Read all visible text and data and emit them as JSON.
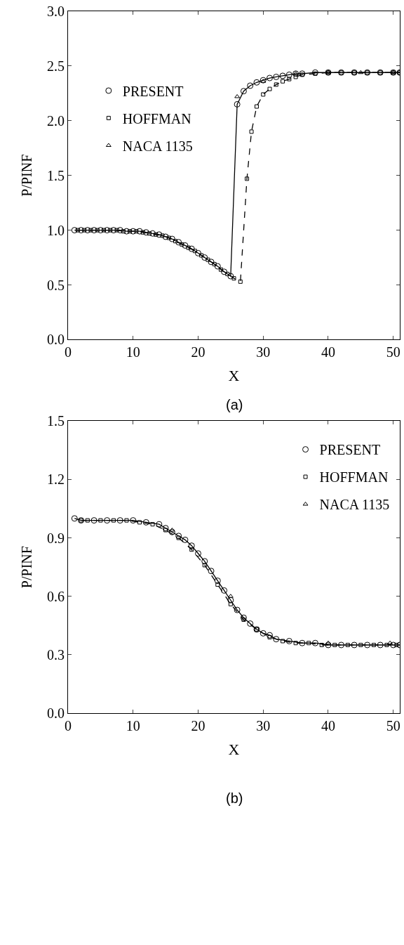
{
  "chart_data": [
    {
      "type": "line",
      "xlabel": "X",
      "ylabel": "P/PINF",
      "annotations": [
        "(a)"
      ],
      "xlim": [
        0,
        51
      ],
      "ylim": [
        0,
        3.0
      ],
      "xticks": [
        0,
        10,
        20,
        30,
        40,
        50
      ],
      "yticks": [
        {
          "value": 0,
          "label": "0.0"
        },
        {
          "value": 0.5,
          "label": "0.5"
        },
        {
          "value": 1.0,
          "label": "1.0"
        },
        {
          "value": 1.5,
          "label": "1.5"
        },
        {
          "value": 2.0,
          "label": "2.0"
        },
        {
          "value": 2.5,
          "label": "2.5"
        },
        {
          "value": 3.0,
          "label": "3.0"
        }
      ],
      "legend": "top left",
      "series": [
        {
          "name": "PRESENT",
          "color": "#000000",
          "marker": "circle",
          "line_style": "solid",
          "x": [
            1,
            2,
            3,
            4,
            5,
            6,
            7,
            8,
            9,
            10,
            11,
            12,
            13,
            14,
            15,
            16,
            17,
            18,
            19,
            20,
            21,
            22,
            23,
            24,
            25,
            26,
            27,
            28,
            29,
            30,
            31,
            32,
            33,
            34,
            35,
            36,
            38,
            40,
            42,
            44,
            46,
            48,
            50,
            51
          ],
          "values": [
            1.0,
            1.0,
            1.0,
            1.0,
            1.0,
            1.0,
            1.0,
            1.0,
            0.99,
            0.99,
            0.99,
            0.98,
            0.97,
            0.96,
            0.94,
            0.92,
            0.89,
            0.86,
            0.83,
            0.79,
            0.75,
            0.71,
            0.67,
            0.62,
            0.58,
            2.15,
            2.27,
            2.32,
            2.35,
            2.37,
            2.39,
            2.4,
            2.41,
            2.42,
            2.43,
            2.43,
            2.44,
            2.44,
            2.44,
            2.44,
            2.44,
            2.44,
            2.44,
            2.44
          ]
        },
        {
          "name": "HOFFMAN",
          "color": "#000000",
          "marker": "square",
          "line_style": "dashed",
          "x": [
            1.5,
            2.5,
            3.5,
            4.5,
            5.5,
            6.5,
            7.5,
            8.5,
            9.5,
            10.5,
            11.5,
            12.5,
            13.5,
            14.5,
            15.5,
            16.5,
            17.5,
            18.5,
            19.5,
            20.5,
            21.5,
            22.5,
            23.5,
            24.5,
            25.5,
            26.5,
            27.5,
            28.2,
            29,
            30,
            31,
            32,
            33,
            34,
            35,
            36,
            38,
            40,
            42,
            44,
            46,
            48,
            50,
            51
          ],
          "values": [
            1.0,
            1.0,
            1.0,
            1.0,
            1.0,
            1.0,
            1.0,
            0.99,
            0.99,
            0.99,
            0.98,
            0.97,
            0.96,
            0.95,
            0.93,
            0.9,
            0.87,
            0.84,
            0.81,
            0.77,
            0.73,
            0.69,
            0.64,
            0.6,
            0.56,
            0.53,
            1.47,
            1.9,
            2.13,
            2.24,
            2.29,
            2.33,
            2.36,
            2.38,
            2.4,
            2.42,
            2.43,
            2.44,
            2.44,
            2.44,
            2.44,
            2.44,
            2.44,
            2.44
          ]
        },
        {
          "name": "NACA 1135",
          "type": "scatter",
          "color": "#000000",
          "marker": "triangle",
          "x": [
            26,
            30,
            35,
            40,
            45,
            50
          ],
          "values": [
            2.22,
            2.36,
            2.43,
            2.44,
            2.44,
            2.44
          ]
        }
      ]
    },
    {
      "type": "line",
      "xlabel": "X",
      "ylabel": "P/PINF",
      "annotations": [
        "(b)"
      ],
      "xlim": [
        0,
        51
      ],
      "ylim": [
        0,
        1.5
      ],
      "xticks": [
        0,
        10,
        20,
        30,
        40,
        50
      ],
      "yticks": [
        {
          "value": 0,
          "label": "0.0"
        },
        0.3,
        0.6,
        0.9,
        1.2,
        1.5
      ],
      "legend": "top right",
      "series": [
        {
          "name": "PRESENT",
          "color": "#000000",
          "marker": "circle",
          "line_style": "solid",
          "x": [
            1,
            2,
            4,
            6,
            8,
            10,
            12,
            14,
            15,
            16,
            17,
            18,
            19,
            20,
            21,
            22,
            23,
            24,
            25,
            26,
            27,
            28,
            29,
            30,
            31,
            32,
            34,
            36,
            38,
            40,
            42,
            44,
            46,
            48,
            50,
            51
          ],
          "values": [
            1.0,
            0.99,
            0.99,
            0.99,
            0.99,
            0.99,
            0.98,
            0.97,
            0.95,
            0.93,
            0.91,
            0.89,
            0.86,
            0.82,
            0.78,
            0.73,
            0.68,
            0.63,
            0.58,
            0.53,
            0.49,
            0.46,
            0.43,
            0.41,
            0.4,
            0.38,
            0.37,
            0.36,
            0.36,
            0.35,
            0.35,
            0.35,
            0.35,
            0.35,
            0.35,
            0.35
          ]
        },
        {
          "name": "HOFFMAN",
          "color": "#000000",
          "marker": "square",
          "line_style": "dashed",
          "x": [
            2,
            3,
            5,
            7,
            9,
            11,
            13,
            15,
            17,
            19,
            21,
            23,
            25,
            27,
            29,
            31,
            33,
            35,
            37,
            39,
            41,
            43,
            45,
            47,
            49,
            50.5
          ],
          "values": [
            0.99,
            0.99,
            0.99,
            0.99,
            0.99,
            0.98,
            0.97,
            0.94,
            0.9,
            0.84,
            0.76,
            0.66,
            0.56,
            0.48,
            0.43,
            0.39,
            0.37,
            0.36,
            0.36,
            0.35,
            0.35,
            0.35,
            0.35,
            0.35,
            0.35,
            0.35
          ]
        },
        {
          "name": "NACA 1135",
          "type": "scatter",
          "color": "#000000",
          "marker": "triangle",
          "x": [
            16,
            25,
            40,
            49.5
          ],
          "values": [
            0.94,
            0.6,
            0.36,
            0.36
          ]
        }
      ]
    }
  ]
}
